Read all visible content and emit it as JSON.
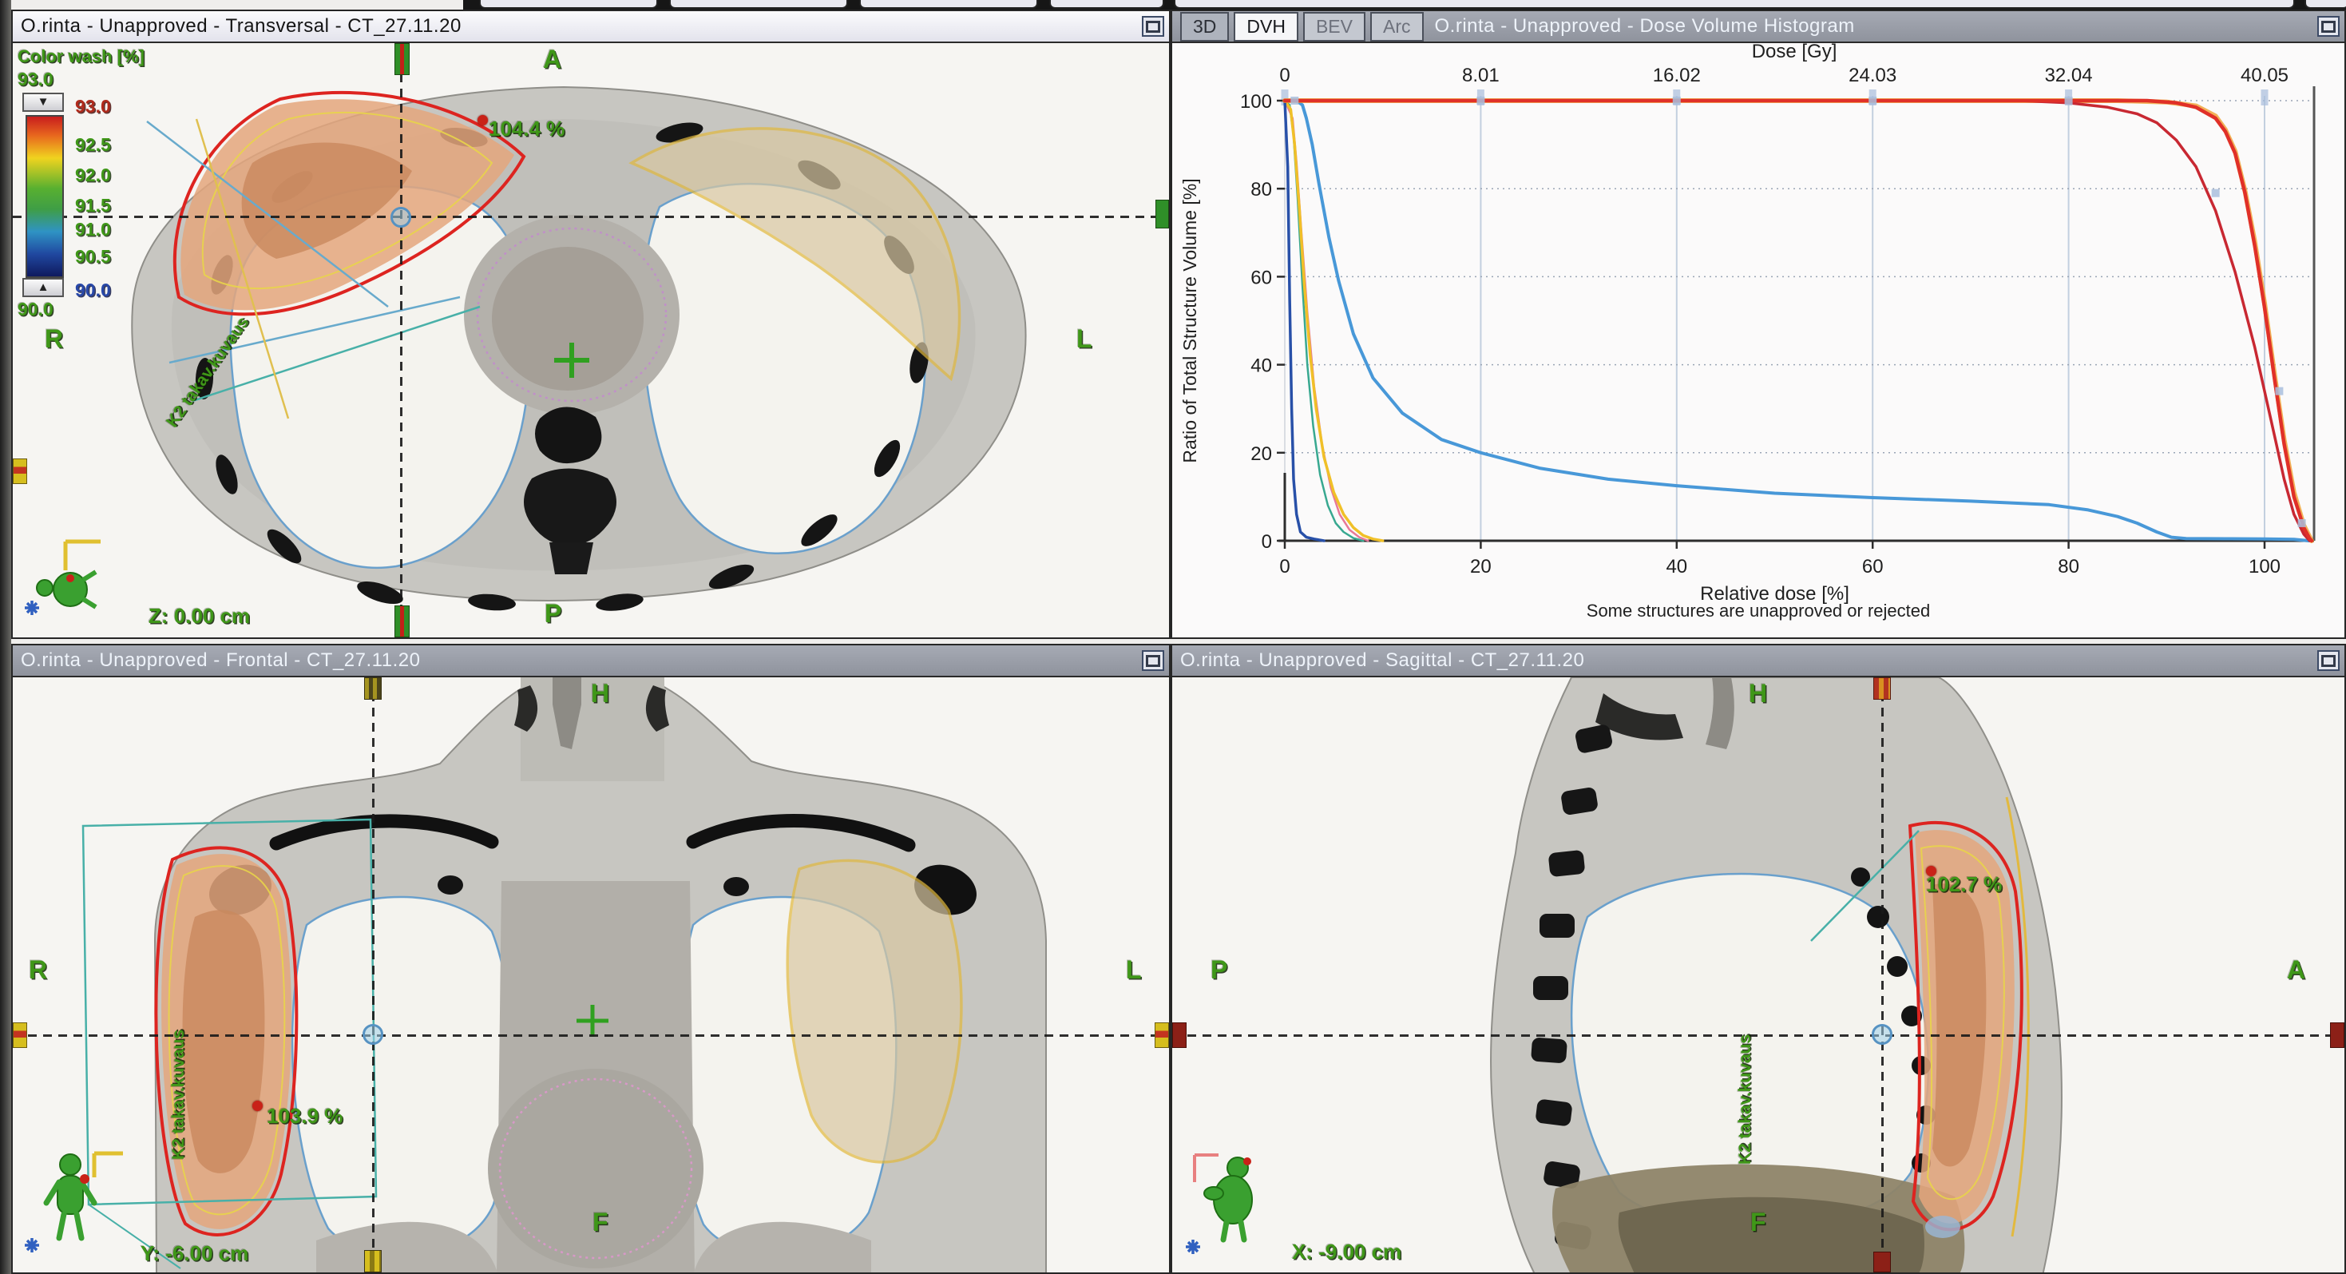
{
  "panels": {
    "transversal": {
      "title": "O.rinta  -  Unapproved - Transversal - CT_27.11.20",
      "orientation": {
        "top": "A",
        "left": "R",
        "right": "L",
        "bottom": "P"
      },
      "max_dose_label": "104.4 %",
      "slice_position": "Z: 0.00 cm",
      "field_label": "K2 takav.kuvaus"
    },
    "frontal": {
      "title": "O.rinta  -  Unapproved - Frontal - CT_27.11.20",
      "orientation": {
        "top": "H",
        "left": "R",
        "right": "L",
        "bottom": "F"
      },
      "max_dose_label": "103.9 %",
      "slice_position": "Y: -6.00 cm",
      "field_label": "K2 takav.kuvaus"
    },
    "sagittal": {
      "title": "O.rinta  -  Unapproved - Sagittal - CT_27.11.20",
      "orientation": {
        "top": "H",
        "left": "P",
        "right": "A",
        "bottom": "F"
      },
      "max_dose_label": "102.7 %",
      "slice_position": "X: -9.00 cm",
      "field_label": "K2 takav.kuvaus"
    },
    "dvh": {
      "tabs": [
        {
          "label": "3D",
          "active": false
        },
        {
          "label": "DVH",
          "active": true
        },
        {
          "label": "BEV",
          "active": false
        },
        {
          "label": "Arc",
          "active": false
        }
      ],
      "title": "O.rinta - Unapproved - Dose Volume Histogram",
      "status": "Some structures are unapproved or rejected"
    }
  },
  "colorwash": {
    "title": "Color wash [%]",
    "max_value": "93.0",
    "min_value": "90.0",
    "scale_labels": [
      "93.0",
      "92.5",
      "92.0",
      "91.5",
      "91.0",
      "90.5",
      "90.0"
    ]
  },
  "chart_data": {
    "type": "line",
    "title": "Dose Volume Histogram",
    "top_xlabel": "Dose [Gy]",
    "top_xticks": [
      "0",
      "8.01",
      "16.02",
      "24.03",
      "32.04",
      "40.05"
    ],
    "xlabel": "Relative dose [%]",
    "xticks": [
      0,
      20,
      40,
      60,
      80,
      100
    ],
    "ylabel": "Ratio of Total Structure Volume [%]",
    "yticks": [
      0,
      20,
      40,
      60,
      80,
      100
    ],
    "xlim": [
      0,
      105
    ],
    "ylim": [
      0,
      100
    ],
    "grid": true,
    "legend": "none",
    "series": [
      {
        "name": "teal-structure",
        "color": "#38a890",
        "width": 2.5,
        "points": [
          [
            0,
            100
          ],
          [
            0.5,
            99
          ],
          [
            0.9,
            92
          ],
          [
            1.3,
            78
          ],
          [
            1.8,
            58
          ],
          [
            2.3,
            40
          ],
          [
            2.9,
            26
          ],
          [
            3.6,
            15
          ],
          [
            4.4,
            8
          ],
          [
            5.2,
            4
          ],
          [
            6,
            2
          ],
          [
            7,
            0.6
          ],
          [
            8,
            0
          ]
        ]
      },
      {
        "name": "pink-structure",
        "color": "#e87898",
        "width": 2.5,
        "points": [
          [
            0,
            100
          ],
          [
            0.8,
            96
          ],
          [
            1.2,
            86
          ],
          [
            1.7,
            70
          ],
          [
            2.3,
            52
          ],
          [
            3,
            35
          ],
          [
            3.8,
            22
          ],
          [
            4.7,
            12
          ],
          [
            5.6,
            6
          ],
          [
            6.6,
            2.5
          ],
          [
            7.6,
            0.8
          ],
          [
            8.5,
            0
          ]
        ]
      },
      {
        "name": "yellow-structure",
        "color": "#f0c028",
        "width": 3.5,
        "points": [
          [
            0,
            100
          ],
          [
            0.6,
            98
          ],
          [
            1,
            90
          ],
          [
            1.5,
            75
          ],
          [
            2,
            58
          ],
          [
            2.6,
            42
          ],
          [
            3.2,
            30
          ],
          [
            4,
            19
          ],
          [
            5,
            11
          ],
          [
            6,
            6
          ],
          [
            7,
            3
          ],
          [
            8,
            1.2
          ],
          [
            9,
            0.4
          ],
          [
            10,
            0
          ]
        ]
      },
      {
        "name": "navy-structure",
        "color": "#2850a8",
        "width": 3.5,
        "points": [
          [
            0,
            100
          ],
          [
            0.3,
            85
          ],
          [
            0.5,
            55
          ],
          [
            0.7,
            30
          ],
          [
            0.9,
            14
          ],
          [
            1.2,
            6
          ],
          [
            1.6,
            2
          ],
          [
            2.2,
            0.8
          ],
          [
            3,
            0.4
          ],
          [
            4,
            0
          ]
        ]
      },
      {
        "name": "blue-lung",
        "color": "#4898d8",
        "width": 4,
        "points": [
          [
            0,
            100
          ],
          [
            1.2,
            100
          ],
          [
            1.8,
            99
          ],
          [
            2.2,
            96
          ],
          [
            2.8,
            90
          ],
          [
            3.5,
            81
          ],
          [
            4.5,
            69
          ],
          [
            5.5,
            59
          ],
          [
            7,
            47
          ],
          [
            9,
            37
          ],
          [
            12,
            29
          ],
          [
            16,
            23
          ],
          [
            20,
            20
          ],
          [
            26,
            16.5
          ],
          [
            33,
            14
          ],
          [
            40,
            12.5
          ],
          [
            50,
            10.8
          ],
          [
            60,
            9.8
          ],
          [
            70,
            9
          ],
          [
            78,
            8.2
          ],
          [
            82,
            7
          ],
          [
            85,
            5.5
          ],
          [
            87,
            4
          ],
          [
            89,
            2
          ],
          [
            90.5,
            0.8
          ],
          [
            92,
            0.5
          ],
          [
            96,
            0.45
          ],
          [
            100,
            0.4
          ],
          [
            103,
            0.3
          ],
          [
            104.5,
            0
          ]
        ]
      },
      {
        "name": "orange-fringe",
        "color": "#f0a030",
        "width": 6,
        "opacity": 0.8,
        "points": [
          [
            0,
            100
          ],
          [
            85,
            100
          ],
          [
            90,
            99.7
          ],
          [
            93,
            98.8
          ],
          [
            95,
            96.5
          ],
          [
            96,
            93.4
          ],
          [
            97,
            88.5
          ],
          [
            98,
            79.5
          ],
          [
            99,
            68
          ],
          [
            100,
            54
          ],
          [
            101,
            38
          ],
          [
            102,
            23
          ],
          [
            103,
            11
          ],
          [
            104,
            3.5
          ],
          [
            104.8,
            0
          ]
        ]
      },
      {
        "name": "red-inner",
        "color": "#c82832",
        "width": 3.5,
        "points": [
          [
            0,
            100
          ],
          [
            60,
            100
          ],
          [
            75,
            100
          ],
          [
            80,
            99.5
          ],
          [
            84,
            98.5
          ],
          [
            87,
            97
          ],
          [
            89,
            95
          ],
          [
            91,
            91
          ],
          [
            93,
            85
          ],
          [
            95,
            75
          ],
          [
            97,
            61
          ],
          [
            99,
            44
          ],
          [
            100,
            34
          ],
          [
            101,
            24
          ],
          [
            102,
            14
          ],
          [
            103,
            6
          ],
          [
            104,
            1.5
          ],
          [
            104.6,
            0
          ]
        ]
      },
      {
        "name": "red-outer",
        "color": "#e03028",
        "width": 4.5,
        "points": [
          [
            0,
            100
          ],
          [
            20,
            100
          ],
          [
            40,
            100
          ],
          [
            60,
            100
          ],
          [
            80,
            100
          ],
          [
            88,
            100
          ],
          [
            91,
            99.5
          ],
          [
            93,
            98.5
          ],
          [
            95,
            96
          ],
          [
            96,
            93
          ],
          [
            97,
            88
          ],
          [
            98,
            79
          ],
          [
            99,
            67
          ],
          [
            100,
            53
          ],
          [
            101,
            37
          ],
          [
            102,
            22
          ],
          [
            103,
            10
          ],
          [
            104,
            3
          ],
          [
            104.6,
            0.5
          ],
          [
            104.8,
            0
          ]
        ]
      }
    ],
    "markers": [
      [
        1,
        100
      ],
      [
        20,
        100
      ],
      [
        40,
        100
      ],
      [
        60,
        100
      ],
      [
        80,
        100
      ],
      [
        95,
        79
      ],
      [
        101.5,
        34
      ],
      [
        103.8,
        4
      ]
    ]
  }
}
